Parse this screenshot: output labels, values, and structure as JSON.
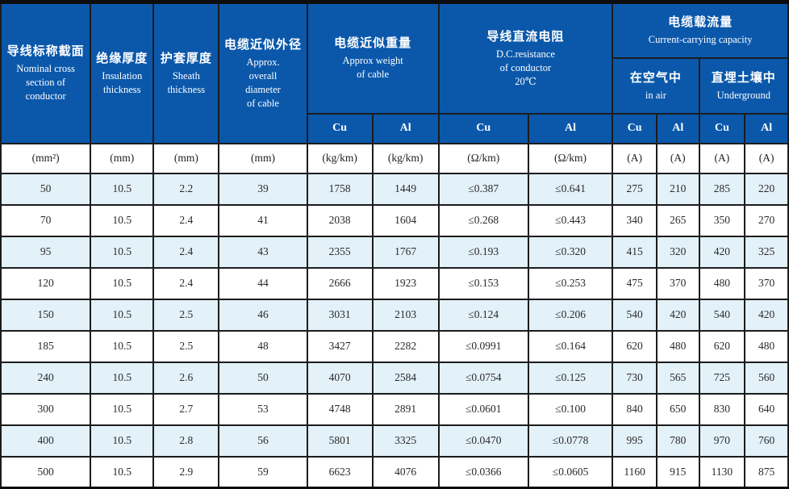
{
  "table": {
    "header": {
      "col_nominal": {
        "zh": "导线标称截面",
        "en": "Nominal cross\nsection of\nconductor"
      },
      "col_insulation": {
        "zh": "绝缘厚度",
        "en": "Insulation\nthickness"
      },
      "col_sheath": {
        "zh": "护套厚度",
        "en": "Sheath\nthickness"
      },
      "col_diameter": {
        "zh": "电缆近似外径",
        "en": "Approx.\noverall\ndiameter\nof cable"
      },
      "group_weight": {
        "zh": "电缆近似重量",
        "en": "Approx weight\nof cable"
      },
      "group_resistance": {
        "zh": "导线直流电阻",
        "en": "D.C.resistance\nof conductor\n20℃"
      },
      "group_capacity": {
        "zh": "电缆载流量",
        "en": "Current-carrying capacity"
      },
      "sub_in_air": {
        "zh": "在空气中",
        "en": "in air"
      },
      "sub_underground": {
        "zh": "直埋土壤中",
        "en": "Underground"
      },
      "conductor_labels": [
        "Cu",
        "Al",
        "Cu",
        "Al",
        "Cu",
        "Al",
        "Cu",
        "Al"
      ]
    },
    "units": [
      "(mm²)",
      "(mm)",
      "(mm)",
      "(mm)",
      "(kg/km)",
      "(kg/km)",
      "(Ω/km)",
      "(Ω/km)",
      "(A)",
      "(A)",
      "(A)",
      "(A)"
    ],
    "rows": [
      [
        "50",
        "10.5",
        "2.2",
        "39",
        "1758",
        "1449",
        "≤0.387",
        "≤0.641",
        "275",
        "210",
        "285",
        "220"
      ],
      [
        "70",
        "10.5",
        "2.4",
        "41",
        "2038",
        "1604",
        "≤0.268",
        "≤0.443",
        "340",
        "265",
        "350",
        "270"
      ],
      [
        "95",
        "10.5",
        "2.4",
        "43",
        "2355",
        "1767",
        "≤0.193",
        "≤0.320",
        "415",
        "320",
        "420",
        "325"
      ],
      [
        "120",
        "10.5",
        "2.4",
        "44",
        "2666",
        "1923",
        "≤0.153",
        "≤0.253",
        "475",
        "370",
        "480",
        "370"
      ],
      [
        "150",
        "10.5",
        "2.5",
        "46",
        "3031",
        "2103",
        "≤0.124",
        "≤0.206",
        "540",
        "420",
        "540",
        "420"
      ],
      [
        "185",
        "10.5",
        "2.5",
        "48",
        "3427",
        "2282",
        "≤0.0991",
        "≤0.164",
        "620",
        "480",
        "620",
        "480"
      ],
      [
        "240",
        "10.5",
        "2.6",
        "50",
        "4070",
        "2584",
        "≤0.0754",
        "≤0.125",
        "730",
        "565",
        "725",
        "560"
      ],
      [
        "300",
        "10.5",
        "2.7",
        "53",
        "4748",
        "2891",
        "≤0.0601",
        "≤0.100",
        "840",
        "650",
        "830",
        "640"
      ],
      [
        "400",
        "10.5",
        "2.8",
        "56",
        "5801",
        "3325",
        "≤0.0470",
        "≤0.0778",
        "995",
        "780",
        "970",
        "760"
      ],
      [
        "500",
        "10.5",
        "2.9",
        "59",
        "6623",
        "4076",
        "≤0.0366",
        "≤0.0605",
        "1160",
        "915",
        "1130",
        "875"
      ]
    ]
  },
  "colors": {
    "header_bg": "#0b58ab",
    "header_text": "#ffffff",
    "row_alt_bg": "#e3f1f9",
    "row_bg": "#ffffff",
    "border": "#1c1c1c"
  },
  "chart_data": {
    "type": "table",
    "columns": [
      "Nominal cross section of conductor (mm²)",
      "Insulation thickness (mm)",
      "Sheath thickness (mm)",
      "Approx. overall diameter of cable (mm)",
      "Approx weight of cable Cu (kg/km)",
      "Approx weight of cable Al (kg/km)",
      "D.C.resistance of conductor 20℃ Cu (Ω/km)",
      "D.C.resistance of conductor 20℃ Al (Ω/km)",
      "Current-carrying capacity in air Cu (A)",
      "Current-carrying capacity in air Al (A)",
      "Current-carrying capacity Underground Cu (A)",
      "Current-carrying capacity Underground Al (A)"
    ]
  }
}
